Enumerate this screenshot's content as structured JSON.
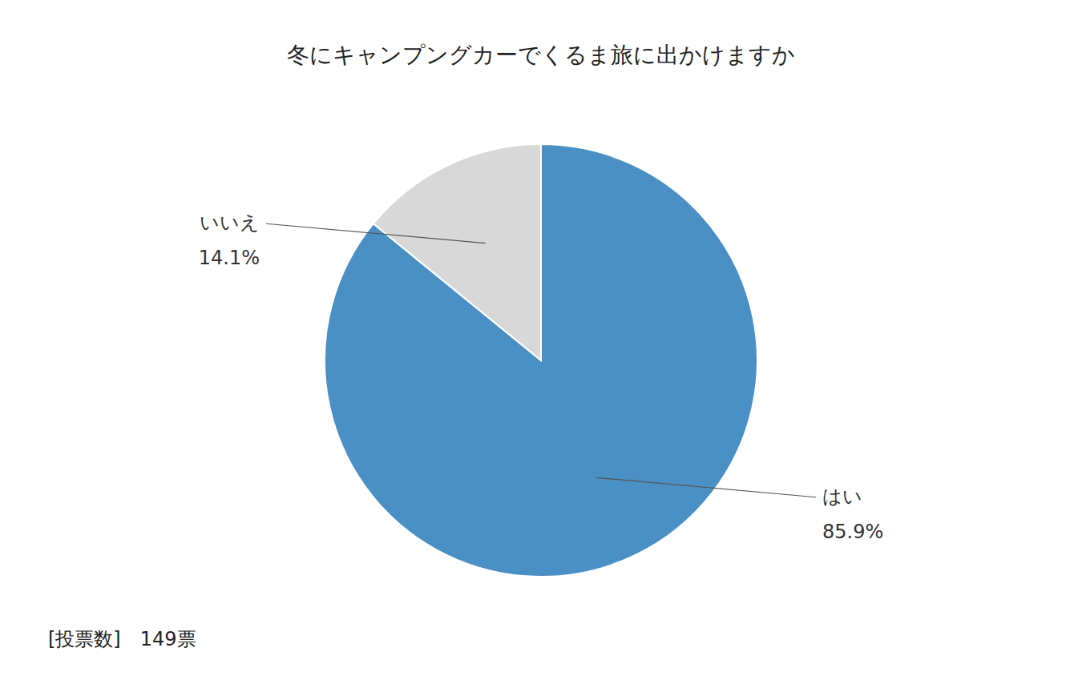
{
  "chart_data": {
    "type": "pie",
    "title": "冬にキャンプングカーでくるま旅に出かけますか",
    "categories": [
      "はい",
      "いいえ"
    ],
    "values": [
      85.9,
      14.1
    ],
    "value_labels": [
      "85.9%",
      "14.1%"
    ],
    "colors": [
      "#4A90C4",
      "#D8D8D8"
    ],
    "data_labels": true,
    "annotations": [
      "[投票数]　149票"
    ]
  }
}
